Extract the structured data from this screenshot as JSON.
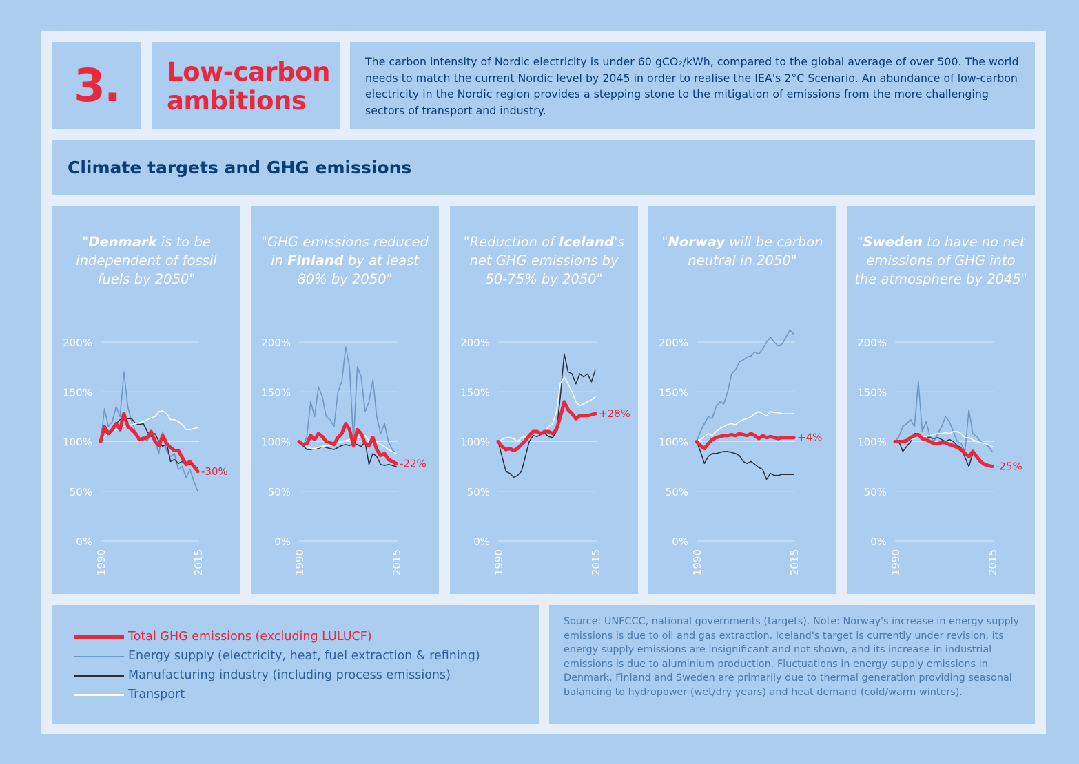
{
  "header": {
    "number": "3.",
    "title_line1": "Low-carbon",
    "title_line2": "ambitions",
    "intro": "The carbon intensity of Nordic electricity is under 60 gCO₂/kWh, compared to the global average of over 500. The world needs to match the current Nordic level by 2045 in order to realise the IEA's 2°C Scenario. An abundance of low-carbon electricity in the Nordic region provides a stepping stone to the mitigation of emissions from the more challenging sectors of transport and industry."
  },
  "section_title": "Climate targets and GHG emissions",
  "colors": {
    "total": "#e8283c",
    "energy": "#6e98c4",
    "manufacturing": "#2a2f3a",
    "transport": "#ffffff",
    "grid": "#d6e6f6",
    "axis_text": "#ffffff"
  },
  "quotes": [
    {
      "pre": "\"",
      "bold": "Denmark",
      "post": " is to be independent of fossil fuels by 2050\""
    },
    {
      "pre": "\"GHG emissions reduced in ",
      "bold": "Finland",
      "post": " by at least 80% by 2050\""
    },
    {
      "pre": "\"Reduction of ",
      "bold": "Iceland",
      "post": "'s net GHG emissions by 50-75% by 2050\""
    },
    {
      "pre": "\"",
      "bold": "Norway",
      "post": " will be carbon neutral in 2050\""
    },
    {
      "pre": "\"",
      "bold": "Sweden",
      "post": " to have no net emissions of GHG into the atmosphere by 2045\""
    }
  ],
  "legend": {
    "total": "Total GHG emissions (excluding LULUCF)",
    "energy": "Energy supply (electricity, heat, fuel extraction & refining)",
    "manufacturing": "Manufacturing industry (including process emissions)",
    "transport": "Transport"
  },
  "source": "Source: UNFCCC, national governments (targets). Note: Norway's increase in energy supply emissions is due to oil and gas extraction. Iceland's target is currently under revision, its energy supply emissions are insignificant and not shown, and its increase in industrial emissions is due to aluminium production. Fluctuations in energy supply emissions in Denmark, Finland and Sweden are primarily due to thermal generation providing seasonal balancing to hydropower (wet/dry years) and heat demand (cold/warm winters).",
  "chart_data": [
    {
      "type": "line",
      "country": "Denmark",
      "x_start": 1990,
      "x_end": 2015,
      "xticks": [
        "1990",
        "2015"
      ],
      "yticks": [
        "0%",
        "50%",
        "100%",
        "150%",
        "200%"
      ],
      "ylim": [
        0,
        200
      ],
      "end_label": "-30%",
      "series": [
        {
          "key": "energy",
          "name": "Energy supply (electricity, heat, fuel extraction & refining)",
          "values": [
            100,
            133,
            115,
            120,
            135,
            125,
            170,
            135,
            120,
            110,
            102,
            105,
            100,
            110,
            100,
            88,
            110,
            90,
            85,
            88,
            72,
            75,
            64,
            72,
            60,
            50
          ]
        },
        {
          "key": "manufacturing",
          "name": "Manufacturing industry (including process emissions)",
          "values": [
            100,
            110,
            108,
            112,
            118,
            122,
            123,
            123,
            123,
            118,
            117,
            118,
            110,
            105,
            108,
            100,
            95,
            98,
            80,
            82,
            78,
            80,
            76,
            77,
            75,
            74
          ]
        },
        {
          "key": "transport",
          "name": "Transport",
          "values": [
            100,
            105,
            108,
            110,
            112,
            113,
            115,
            116,
            117,
            118,
            119,
            120,
            122,
            124,
            125,
            130,
            131,
            128,
            122,
            122,
            120,
            117,
            112,
            112,
            113,
            114
          ]
        },
        {
          "key": "total",
          "name": "Total GHG emissions (excluding LULUCF)",
          "values": [
            100,
            115,
            108,
            112,
            118,
            112,
            128,
            115,
            112,
            108,
            102,
            103,
            104,
            110,
            100,
            96,
            106,
            98,
            94,
            91,
            91,
            84,
            77,
            80,
            75,
            70
          ]
        }
      ]
    },
    {
      "type": "line",
      "country": "Finland",
      "x_start": 1990,
      "x_end": 2015,
      "xticks": [
        "1990",
        "2015"
      ],
      "yticks": [
        "0%",
        "50%",
        "100%",
        "150%",
        "200%"
      ],
      "ylim": [
        0,
        200
      ],
      "end_label": "-22%",
      "series": [
        {
          "key": "energy",
          "name": "Energy supply (electricity, heat, fuel extraction & refining)",
          "values": [
            100,
            95,
            105,
            140,
            125,
            155,
            145,
            125,
            122,
            115,
            150,
            160,
            195,
            175,
            100,
            175,
            165,
            130,
            140,
            162,
            125,
            108,
            118,
            100,
            92,
            88
          ]
        },
        {
          "key": "manufacturing",
          "name": "Manufacturing industry (including process emissions)",
          "values": [
            100,
            96,
            92,
            92,
            93,
            93,
            95,
            94,
            93,
            92,
            94,
            96,
            97,
            96,
            98,
            97,
            95,
            100,
            77,
            88,
            85,
            77,
            76,
            77,
            76,
            75
          ]
        },
        {
          "key": "transport",
          "name": "Transport",
          "values": [
            100,
            97,
            95,
            93,
            93,
            94,
            95,
            96,
            96,
            97,
            99,
            100,
            101,
            102,
            103,
            104,
            105,
            106,
            101,
            98,
            100,
            97,
            95,
            92,
            90,
            88
          ]
        },
        {
          "key": "total",
          "name": "Total GHG emissions (excluding LULUCF)",
          "values": [
            100,
            97,
            98,
            106,
            102,
            108,
            105,
            100,
            99,
            97,
            104,
            108,
            118,
            112,
            96,
            112,
            108,
            98,
            96,
            104,
            92,
            86,
            88,
            82,
            80,
            78
          ]
        }
      ]
    },
    {
      "type": "line",
      "country": "Iceland",
      "x_start": 1990,
      "x_end": 2015,
      "xticks": [
        "1990",
        "2015"
      ],
      "yticks": [
        "0%",
        "50%",
        "100%",
        "150%",
        "200%"
      ],
      "ylim": [
        0,
        200
      ],
      "end_label": "+28%",
      "series": [
        {
          "key": "manufacturing",
          "name": "Manufacturing industry (including process emissions)",
          "values": [
            100,
            85,
            70,
            68,
            64,
            66,
            70,
            85,
            100,
            106,
            105,
            107,
            108,
            105,
            104,
            110,
            145,
            188,
            170,
            168,
            158,
            168,
            165,
            168,
            160,
            172
          ]
        },
        {
          "key": "transport",
          "name": "Transport",
          "values": [
            100,
            102,
            104,
            104,
            103,
            100,
            104,
            105,
            106,
            108,
            110,
            108,
            110,
            115,
            118,
            130,
            158,
            165,
            158,
            150,
            140,
            136,
            138,
            140,
            142,
            145
          ]
        },
        {
          "key": "total",
          "name": "Total GHG emissions (excluding LULUCF)",
          "values": [
            100,
            95,
            92,
            93,
            91,
            93,
            97,
            101,
            106,
            110,
            110,
            108,
            110,
            110,
            108,
            112,
            125,
            140,
            132,
            128,
            123,
            126,
            126,
            126,
            127,
            128
          ]
        }
      ]
    },
    {
      "type": "line",
      "country": "Norway",
      "x_start": 1990,
      "x_end": 2015,
      "xticks": [
        "1990",
        "2015"
      ],
      "yticks": [
        "0%",
        "50%",
        "100%",
        "150%",
        "200%"
      ],
      "ylim": [
        0,
        200
      ],
      "end_label": "+4%",
      "series": [
        {
          "key": "energy",
          "name": "Energy supply (electricity, heat, fuel extraction & refining)",
          "values": [
            100,
            110,
            118,
            125,
            123,
            135,
            140,
            138,
            150,
            168,
            172,
            180,
            182,
            185,
            186,
            190,
            188,
            193,
            200,
            205,
            200,
            196,
            198,
            205,
            212,
            208
          ]
        },
        {
          "key": "manufacturing",
          "name": "Manufacturing industry (including process emissions)",
          "values": [
            100,
            90,
            78,
            85,
            88,
            88,
            89,
            90,
            90,
            89,
            88,
            86,
            80,
            78,
            80,
            77,
            74,
            72,
            62,
            68,
            66,
            66,
            67,
            67,
            67,
            67
          ]
        },
        {
          "key": "transport",
          "name": "Transport",
          "values": [
            100,
            102,
            105,
            108,
            106,
            110,
            113,
            115,
            117,
            118,
            117,
            120,
            122,
            123,
            125,
            128,
            130,
            128,
            126,
            130,
            129,
            129,
            128,
            128,
            128,
            128
          ]
        },
        {
          "key": "total",
          "name": "Total GHG emissions (excluding LULUCF)",
          "values": [
            100,
            96,
            93,
            98,
            102,
            104,
            105,
            106,
            106,
            107,
            106,
            108,
            107,
            106,
            108,
            106,
            103,
            106,
            104,
            105,
            104,
            103,
            104,
            104,
            104,
            104
          ]
        }
      ]
    },
    {
      "type": "line",
      "country": "Sweden",
      "x_start": 1990,
      "x_end": 2015,
      "xticks": [
        "1990",
        "2015"
      ],
      "yticks": [
        "0%",
        "50%",
        "100%",
        "150%",
        "200%"
      ],
      "ylim": [
        0,
        200
      ],
      "end_label": "-25%",
      "series": [
        {
          "key": "energy",
          "name": "Energy supply (electricity, heat, fuel extraction & refining)",
          "values": [
            100,
            105,
            115,
            118,
            122,
            115,
            160,
            110,
            120,
            105,
            100,
            108,
            115,
            125,
            120,
            110,
            100,
            98,
            90,
            132,
            108,
            105,
            100,
            98,
            95,
            90
          ]
        },
        {
          "key": "manufacturing",
          "name": "Manufacturing industry (including process emissions)",
          "values": [
            100,
            100,
            90,
            95,
            100,
            108,
            108,
            102,
            105,
            104,
            103,
            104,
            102,
            100,
            102,
            100,
            96,
            94,
            84,
            75,
            88,
            84,
            80,
            77,
            76,
            75
          ]
        },
        {
          "key": "transport",
          "name": "Transport",
          "values": [
            100,
            100,
            100,
            101,
            102,
            103,
            104,
            104,
            105,
            106,
            107,
            108,
            108,
            109,
            108,
            110,
            110,
            108,
            104,
            104,
            102,
            100,
            99,
            98,
            97,
            95
          ]
        },
        {
          "key": "total",
          "name": "Total GHG emissions (excluding LULUCF)",
          "values": [
            100,
            100,
            100,
            101,
            104,
            106,
            107,
            103,
            102,
            100,
            98,
            98,
            99,
            99,
            97,
            96,
            94,
            92,
            88,
            85,
            90,
            85,
            80,
            77,
            76,
            75
          ]
        }
      ]
    }
  ]
}
